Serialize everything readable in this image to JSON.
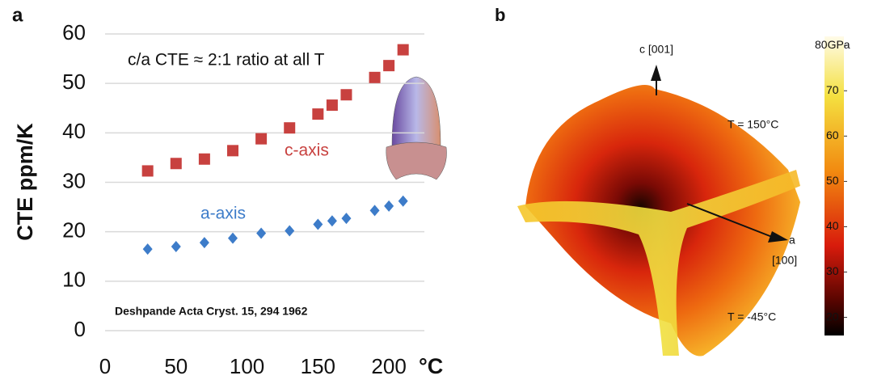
{
  "chart_data": [
    {
      "type": "scatter",
      "panel_label": "a",
      "ylabel": "CTE ppm/K",
      "xlabel": "°C",
      "annotations": [
        "c/a CTE ≈ 2:1 ratio at all T",
        "Deshpande Acta Cryst. 15, 294 1962"
      ],
      "xlim": [
        0,
        225
      ],
      "xticks": [
        0,
        50,
        100,
        150,
        200
      ],
      "ylim": [
        0,
        60
      ],
      "yticks": [
        0,
        10,
        20,
        30,
        40,
        50,
        60
      ],
      "grid": true,
      "series": [
        {
          "name": "c-axis",
          "color": "#c8413f",
          "marker": "square",
          "x": [
            30,
            50,
            70,
            90,
            110,
            130,
            150,
            160,
            170,
            190,
            200,
            210
          ],
          "values": [
            32.3,
            33.8,
            34.7,
            36.4,
            38.8,
            41,
            43.8,
            45.6,
            47.7,
            51.2,
            53.6,
            56.8
          ]
        },
        {
          "name": "a-axis",
          "color": "#3d7cc9",
          "marker": "diamond",
          "x": [
            30,
            50,
            70,
            90,
            110,
            130,
            150,
            160,
            170,
            190,
            200,
            210
          ],
          "values": [
            16.5,
            17,
            17.8,
            18.7,
            19.7,
            20.2,
            21.5,
            22.2,
            22.7,
            24.3,
            25.2,
            26.2
          ]
        }
      ]
    },
    {
      "type": "surface",
      "panel_label": "b",
      "annotations": [
        "c [001]",
        "T = 150°C",
        "a",
        "[100]",
        "T = -45°C"
      ],
      "colorbar_lim": [
        16,
        82
      ],
      "colorbar_ticks": [
        {
          "value": 80,
          "label": "80GPa"
        },
        70,
        60,
        50,
        40,
        30,
        20
      ]
    }
  ]
}
